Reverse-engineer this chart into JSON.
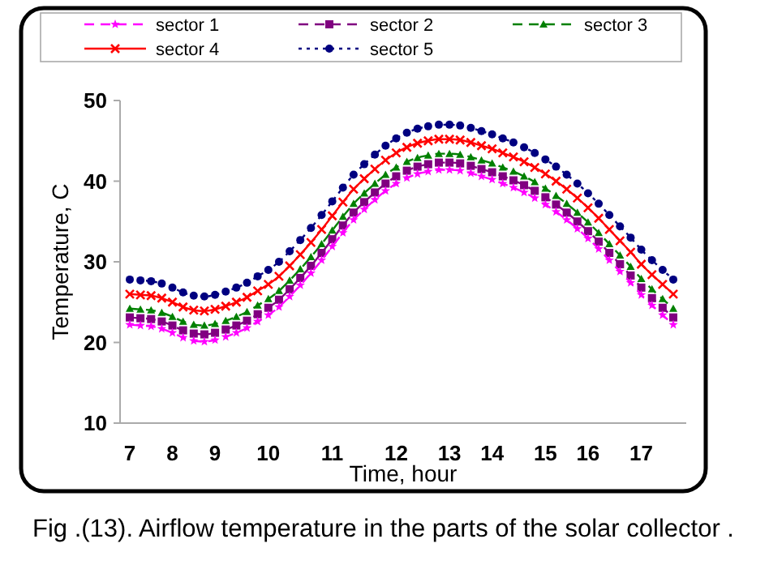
{
  "chart_data": {
    "type": "line",
    "xlabel": "Time, hour",
    "ylabel": "Temperature, C",
    "categories": [
      "7",
      null,
      null,
      null,
      "8",
      null,
      null,
      null,
      "9",
      null,
      null,
      null,
      null,
      "10",
      null,
      null,
      null,
      null,
      null,
      "11",
      null,
      null,
      null,
      null,
      null,
      "12",
      null,
      null,
      null,
      null,
      "13",
      null,
      null,
      null,
      "14",
      null,
      null,
      null,
      null,
      "15",
      null,
      null,
      null,
      "16",
      null,
      null,
      null,
      null,
      "17",
      null,
      null,
      null
    ],
    "ylim": [
      10,
      50
    ],
    "yticks": [
      10,
      20,
      30,
      40,
      50
    ],
    "grid": false,
    "legend": "top",
    "series": [
      {
        "name": "sector 1",
        "color": "#ff00ff",
        "marker": "star",
        "line_style": "dashed",
        "values": [
          22.2,
          22.1,
          22.0,
          21.7,
          21.2,
          20.6,
          20.2,
          20.1,
          20.3,
          20.7,
          21.2,
          21.8,
          22.6,
          23.4,
          24.4,
          25.7,
          27.1,
          28.6,
          30.2,
          31.9,
          33.6,
          35.2,
          36.5,
          37.7,
          38.8,
          39.7,
          40.4,
          40.9,
          41.2,
          41.4,
          41.4,
          41.3,
          41.0,
          40.6,
          40.2,
          39.7,
          39.2,
          38.6,
          37.9,
          37.1,
          36.2,
          35.2,
          34.1,
          32.9,
          31.6,
          30.2,
          28.8,
          27.4,
          25.9,
          24.6,
          23.4,
          22.2
        ]
      },
      {
        "name": "sector 2",
        "color": "#800080",
        "marker": "square",
        "line_style": "dashed",
        "values": [
          23.1,
          23.0,
          22.9,
          22.6,
          22.1,
          21.5,
          21.1,
          21.0,
          21.2,
          21.6,
          22.1,
          22.7,
          23.5,
          24.3,
          25.3,
          26.6,
          28.0,
          29.5,
          31.1,
          32.8,
          34.5,
          36.1,
          37.4,
          38.6,
          39.7,
          40.6,
          41.3,
          41.8,
          42.1,
          42.3,
          42.3,
          42.2,
          41.9,
          41.5,
          41.1,
          40.6,
          40.1,
          39.5,
          38.8,
          38.0,
          37.1,
          36.1,
          35.0,
          33.8,
          32.5,
          31.1,
          29.7,
          28.3,
          26.8,
          25.5,
          24.3,
          23.1
        ]
      },
      {
        "name": "sector 3",
        "color": "#008000",
        "marker": "triangle",
        "line_style": "dashed",
        "values": [
          24.2,
          24.1,
          24.0,
          23.7,
          23.2,
          22.6,
          22.2,
          22.1,
          22.3,
          22.7,
          23.2,
          23.8,
          24.6,
          25.4,
          26.4,
          27.7,
          29.1,
          30.6,
          32.2,
          33.9,
          35.6,
          37.2,
          38.5,
          39.7,
          40.8,
          41.7,
          42.4,
          42.9,
          43.2,
          43.4,
          43.4,
          43.3,
          43.0,
          42.6,
          42.2,
          41.7,
          41.2,
          40.6,
          39.9,
          39.1,
          38.2,
          37.2,
          36.1,
          34.9,
          33.6,
          32.2,
          30.8,
          29.4,
          27.9,
          26.6,
          25.4,
          24.2
        ]
      },
      {
        "name": "sector 4",
        "color": "#ff0000",
        "marker": "cross",
        "line_style": "solid",
        "values": [
          26.0,
          25.9,
          25.8,
          25.5,
          25.0,
          24.4,
          24.0,
          23.9,
          24.1,
          24.5,
          25.0,
          25.6,
          26.4,
          27.2,
          28.2,
          29.5,
          30.9,
          32.4,
          34.0,
          35.7,
          37.4,
          39.0,
          40.3,
          41.5,
          42.6,
          43.5,
          44.2,
          44.7,
          45.0,
          45.2,
          45.2,
          45.1,
          44.8,
          44.4,
          44.0,
          43.5,
          43.0,
          42.4,
          41.7,
          40.9,
          40.0,
          39.0,
          37.9,
          36.7,
          35.4,
          34.0,
          32.6,
          31.2,
          29.7,
          28.4,
          27.2,
          26.0
        ]
      },
      {
        "name": "sector 5",
        "color": "#000080",
        "marker": "circle",
        "line_style": "dotted",
        "values": [
          27.8,
          27.7,
          27.6,
          27.3,
          26.8,
          26.2,
          25.8,
          25.7,
          25.9,
          26.3,
          26.8,
          27.4,
          28.2,
          29.0,
          30.0,
          31.3,
          32.7,
          34.2,
          35.8,
          37.5,
          39.2,
          40.8,
          42.1,
          43.3,
          44.4,
          45.3,
          46.0,
          46.5,
          46.8,
          47.0,
          47.0,
          46.9,
          46.6,
          46.2,
          45.8,
          45.3,
          44.8,
          44.2,
          43.5,
          42.7,
          41.8,
          40.8,
          39.7,
          38.5,
          37.2,
          35.8,
          34.4,
          33.0,
          31.5,
          30.2,
          29.0,
          27.8
        ]
      }
    ],
    "annotations": [
      "Fig .(13). Airflow temperature in the parts of the solar collector ."
    ]
  }
}
